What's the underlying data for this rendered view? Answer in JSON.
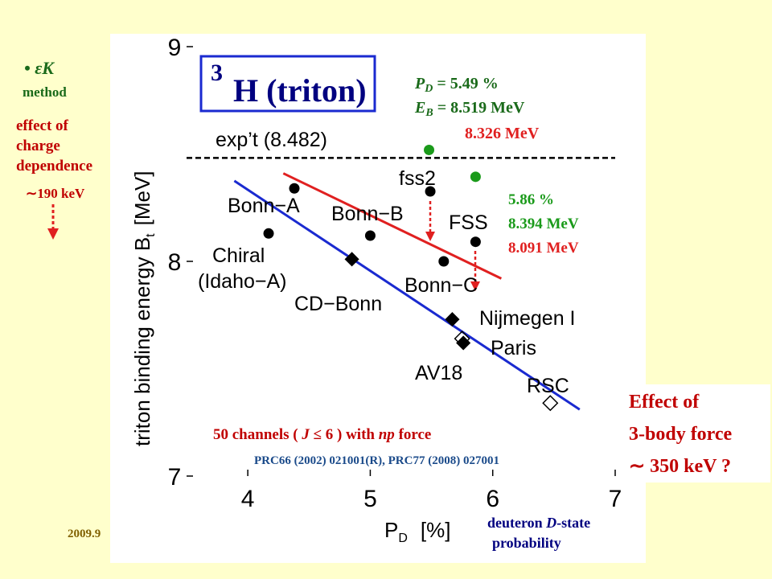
{
  "chart_data": {
    "type": "scatter",
    "title_sup": "3",
    "title": "H (triton)",
    "xlabel_main": "P",
    "xlabel_sub": "D",
    "xlabel_unit": "[%]",
    "ylabel_main": "triton binding energy  B",
    "ylabel_sub": "t",
    "ylabel_unit": "[MeV]",
    "xlim": [
      3.5,
      7.0
    ],
    "ylim": [
      7.0,
      9.06
    ],
    "xticks": [
      4,
      5,
      6,
      7
    ],
    "yticks": [
      7,
      8,
      9
    ],
    "reference": {
      "value": 8.482,
      "label": "exp’t (8.482)"
    },
    "series": [
      {
        "marker": "circle",
        "color": "#000000",
        "x": [
          4.38,
          4.17,
          5.0,
          5.49,
          5.86,
          5.6
        ],
        "values": [
          8.34,
          8.13,
          8.12,
          8.326,
          8.091,
          8.0
        ]
      },
      {
        "marker": "diamond",
        "color": "#000000",
        "x": [
          4.85,
          5.67,
          5.76
        ],
        "values": [
          8.01,
          7.73,
          7.62
        ]
      },
      {
        "marker": "open-diamond",
        "color": "#000000",
        "x": [
          5.75,
          6.47
        ],
        "values": [
          7.64,
          7.34
        ]
      },
      {
        "marker": "circle",
        "color": "#1a9a1a",
        "x": [
          5.48,
          5.86
        ],
        "values": [
          8.519,
          8.394
        ]
      }
    ],
    "lines": [
      {
        "color": "#e02020",
        "x": [
          4.29,
          6.07
        ],
        "values": [
          8.41,
          7.92
        ]
      },
      {
        "color": "#1a2ad0",
        "x": [
          3.89,
          6.71
        ],
        "values": [
          8.375,
          7.31
        ]
      }
    ],
    "point_labels": [
      "Bonn−A",
      "Chiral",
      "(Idaho−A)",
      "Bonn−B",
      "CD−Bonn",
      "fss2",
      "FSS",
      "Bonn−C",
      "Nijmegen I",
      "Paris",
      "AV18",
      "RSC"
    ],
    "fss2_pd": {
      "label": "P",
      "sub": "D",
      "value": " = 5.49 %"
    },
    "fss2_eb": {
      "label": "E",
      "sub": "B",
      "value": " = 8.519 MeV"
    },
    "fss2_eb_nocd": "8.326 MeV",
    "fss_pd": "5.86 %",
    "fss_eb": "8.394 MeV",
    "fss_eb_nocd": "8.091 MeV",
    "channels": {
      "pre": "50 channels ( ",
      "j": "J",
      "mid": " ≤ 6 ) with ",
      "np": "np",
      "post": " force"
    },
    "refs": "PRC66 (2002) 021001(R), PRC77 (2008) 027001"
  },
  "side": {
    "method_symbol": "• εK",
    "method_word": "method",
    "charge_effect": [
      "effect of",
      "charge",
      "dependence"
    ],
    "charge_value": "∼190 keV",
    "three_body": [
      "Effect of",
      "3-body force",
      "∼ 350 keV ?"
    ],
    "deuteron": {
      "pre": "deuteron ",
      "d": "D",
      "post": "-state"
    },
    "probability": "probability",
    "date": "2009.9"
  }
}
